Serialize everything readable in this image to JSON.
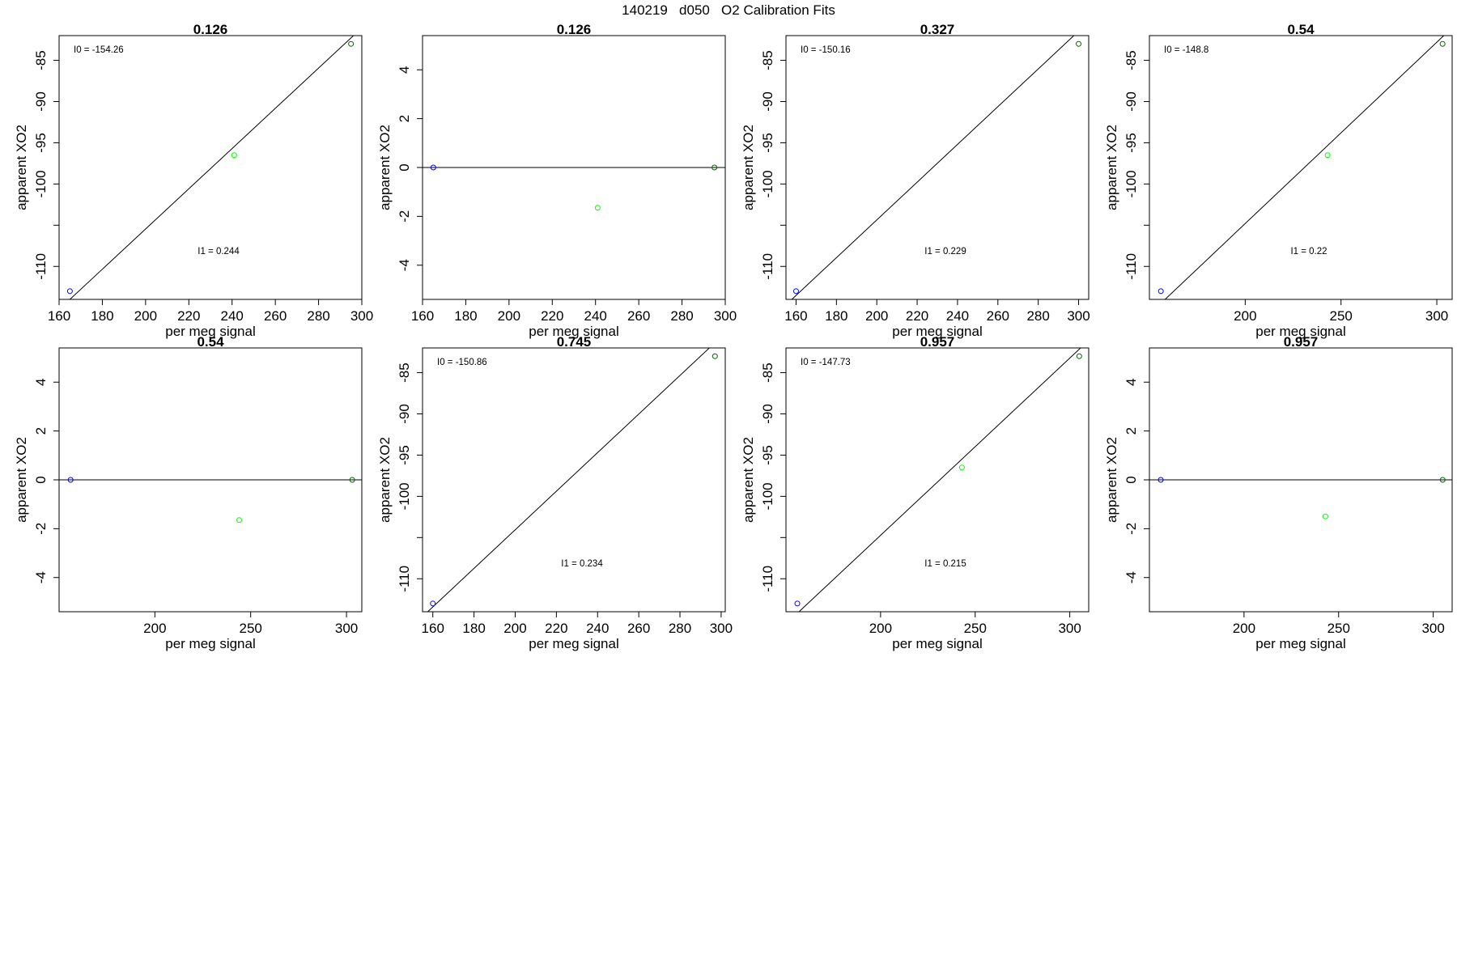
{
  "figure": {
    "title": "140219   d050   O2 Calibration Fits"
  },
  "colors": {
    "axis": "#000000",
    "fit_line": "#000000",
    "blue_point": "#0000ff",
    "green_point": "#00ff00",
    "dark_green_point": "#006400"
  },
  "chart_data": [
    {
      "type": "scatter",
      "title": "0.126",
      "xlabel": "per meg signal",
      "ylabel": "apparent XO2",
      "xlim": [
        160,
        300
      ],
      "ylim": [
        -114,
        -82
      ],
      "xticks": [
        160,
        180,
        200,
        220,
        240,
        260,
        280,
        300
      ],
      "yticks": [
        -110,
        -105,
        -100,
        -95,
        -90,
        -85
      ],
      "ytick_labels": [
        "-110",
        "",
        "-100",
        "-95",
        "-90",
        "-85"
      ],
      "points": [
        {
          "x": 165,
          "y": -113,
          "color": "#0000ff"
        },
        {
          "x": 241,
          "y": -96.5,
          "color": "#00ff00"
        },
        {
          "x": 295,
          "y": -83,
          "color": "#006400"
        }
      ],
      "fit": {
        "slope": 0.244,
        "intercept": -154.26
      },
      "annotations": [
        {
          "text": "I0 =  -154.26",
          "pos": "top-left"
        },
        {
          "text": "I1 =  0.244",
          "pos": "lower-middle"
        }
      ]
    },
    {
      "type": "scatter",
      "title": "0.126",
      "xlabel": "per meg signal",
      "ylabel": "apparent XO2",
      "xlim": [
        160,
        300
      ],
      "ylim": [
        -5.4,
        5.4
      ],
      "xticks": [
        160,
        180,
        200,
        220,
        240,
        260,
        280,
        300
      ],
      "yticks": [
        -4,
        -2,
        0,
        2,
        4
      ],
      "ytick_labels": [
        "-4",
        "-2",
        "0",
        "2",
        "4"
      ],
      "points": [
        {
          "x": 165,
          "y": 0,
          "color": "#0000ff"
        },
        {
          "x": 241,
          "y": -1.65,
          "color": "#00ff00"
        },
        {
          "x": 295,
          "y": 0,
          "color": "#006400"
        }
      ],
      "fit": {
        "slope": 0,
        "intercept": 0
      },
      "annotations": []
    },
    {
      "type": "scatter",
      "title": "0.327",
      "xlabel": "per meg signal",
      "ylabel": "apparent XO2",
      "xlim": [
        155,
        305
      ],
      "ylim": [
        -114,
        -82
      ],
      "xticks": [
        160,
        180,
        200,
        220,
        240,
        260,
        280,
        300
      ],
      "yticks": [
        -110,
        -105,
        -100,
        -95,
        -90,
        -85
      ],
      "ytick_labels": [
        "-110",
        "",
        "-100",
        "-95",
        "-90",
        "-85"
      ],
      "points": [
        {
          "x": 160,
          "y": -113,
          "color": "#0000ff"
        },
        {
          "x": 300,
          "y": -83,
          "color": "#006400"
        }
      ],
      "fit": {
        "slope": 0.229,
        "intercept": -150.16
      },
      "annotations": [
        {
          "text": "I0 =  -150.16",
          "pos": "top-left"
        },
        {
          "text": "I1 =  0.229",
          "pos": "lower-middle"
        }
      ]
    },
    {
      "type": "scatter",
      "title": "0.54",
      "xlabel": "per meg signal",
      "ylabel": "apparent XO2",
      "xlim": [
        150,
        308
      ],
      "ylim": [
        -114,
        -82
      ],
      "xticks": [
        200,
        250,
        300
      ],
      "yticks": [
        -110,
        -105,
        -100,
        -95,
        -90,
        -85
      ],
      "ytick_labels": [
        "-110",
        "",
        "-100",
        "-95",
        "-90",
        "-85"
      ],
      "points": [
        {
          "x": 156,
          "y": -113,
          "color": "#0000ff"
        },
        {
          "x": 243,
          "y": -96.5,
          "color": "#00ff00"
        },
        {
          "x": 303,
          "y": -83,
          "color": "#006400"
        }
      ],
      "fit": {
        "slope": 0.22,
        "intercept": -148.8
      },
      "annotations": [
        {
          "text": "I0 =  -148.8",
          "pos": "top-left"
        },
        {
          "text": "I1 =  0.22",
          "pos": "lower-middle"
        }
      ]
    },
    {
      "type": "scatter",
      "title": "0.54",
      "xlabel": "per meg signal",
      "ylabel": "apparent XO2",
      "xlim": [
        150,
        308
      ],
      "ylim": [
        -5.4,
        5.4
      ],
      "xticks": [
        200,
        250,
        300
      ],
      "yticks": [
        -4,
        -2,
        0,
        2,
        4
      ],
      "ytick_labels": [
        "-4",
        "-2",
        "0",
        "2",
        "4"
      ],
      "points": [
        {
          "x": 156,
          "y": 0,
          "color": "#0000ff"
        },
        {
          "x": 244,
          "y": -1.65,
          "color": "#00ff00"
        },
        {
          "x": 303,
          "y": 0,
          "color": "#006400"
        }
      ],
      "fit": {
        "slope": 0,
        "intercept": 0
      },
      "annotations": []
    },
    {
      "type": "scatter",
      "title": "0.745",
      "xlabel": "per meg signal",
      "ylabel": "apparent XO2",
      "xlim": [
        155,
        302
      ],
      "ylim": [
        -114,
        -82
      ],
      "xticks": [
        160,
        180,
        200,
        220,
        240,
        260,
        280,
        300
      ],
      "yticks": [
        -110,
        -105,
        -100,
        -95,
        -90,
        -85
      ],
      "ytick_labels": [
        "-110",
        "",
        "-100",
        "-95",
        "-90",
        "-85"
      ],
      "points": [
        {
          "x": 160,
          "y": -113,
          "color": "#0000ff"
        },
        {
          "x": 297,
          "y": -83,
          "color": "#006400"
        }
      ],
      "fit": {
        "slope": 0.234,
        "intercept": -150.86
      },
      "annotations": [
        {
          "text": "I0 =  -150.86",
          "pos": "top-left"
        },
        {
          "text": "I1 =  0.234",
          "pos": "lower-middle"
        }
      ]
    },
    {
      "type": "scatter",
      "title": "0.957",
      "xlabel": "per meg signal",
      "ylabel": "apparent XO2",
      "xlim": [
        150,
        310
      ],
      "ylim": [
        -114,
        -82
      ],
      "xticks": [
        200,
        250,
        300
      ],
      "yticks": [
        -110,
        -105,
        -100,
        -95,
        -90,
        -85
      ],
      "ytick_labels": [
        "-110",
        "",
        "-100",
        "-95",
        "-90",
        "-85"
      ],
      "points": [
        {
          "x": 156,
          "y": -113,
          "color": "#0000ff"
        },
        {
          "x": 243,
          "y": -96.5,
          "color": "#00ff00"
        },
        {
          "x": 305,
          "y": -83,
          "color": "#006400"
        }
      ],
      "fit": {
        "slope": 0.215,
        "intercept": -147.73
      },
      "annotations": [
        {
          "text": "I0 =  -147.73",
          "pos": "top-left"
        },
        {
          "text": "I1 =  0.215",
          "pos": "lower-middle"
        }
      ]
    },
    {
      "type": "scatter",
      "title": "0.957",
      "xlabel": "per meg signal",
      "ylabel": "apparent XO2",
      "xlim": [
        150,
        310
      ],
      "ylim": [
        -5.4,
        5.4
      ],
      "xticks": [
        200,
        250,
        300
      ],
      "yticks": [
        -4,
        -2,
        0,
        2,
        4
      ],
      "ytick_labels": [
        "-4",
        "-2",
        "0",
        "2",
        "4"
      ],
      "points": [
        {
          "x": 156,
          "y": 0,
          "color": "#0000ff"
        },
        {
          "x": 243,
          "y": -1.5,
          "color": "#00ff00"
        },
        {
          "x": 305,
          "y": 0,
          "color": "#006400"
        }
      ],
      "fit": {
        "slope": 0,
        "intercept": 0
      },
      "annotations": []
    }
  ]
}
